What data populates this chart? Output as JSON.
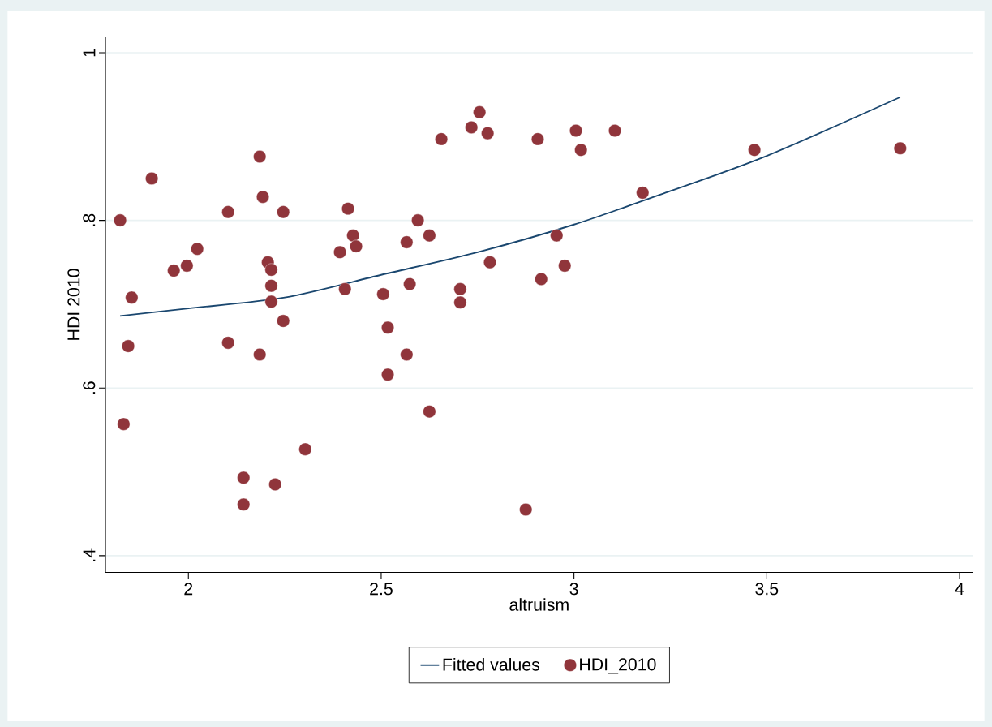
{
  "chart_data": {
    "type": "scatter",
    "xlabel": "altruism",
    "ylabel": "HDI 2010",
    "xlim": [
      1.785,
      4.035
    ],
    "ylim": [
      0.38,
      1.019
    ],
    "xticks": [
      2,
      2.5,
      3,
      3.5,
      4
    ],
    "yticks": [
      {
        "value": 0.4,
        "label": ".4"
      },
      {
        "value": 0.6,
        "label": ".6"
      },
      {
        "value": 0.8,
        "label": ".8"
      },
      {
        "value": 1,
        "label": "1"
      }
    ],
    "grid": "y",
    "legend": "bottom",
    "marker": "circle",
    "series": [
      {
        "name": "Fitted values",
        "type": "line",
        "color": "#1a476f",
        "marker": "none",
        "x": [
          1.823,
          2.0,
          2.25,
          2.5,
          2.75,
          3.0,
          3.25,
          3.5,
          3.846
        ],
        "values": [
          0.686,
          0.695,
          0.708,
          0.735,
          0.762,
          0.795,
          0.835,
          0.877,
          0.947
        ]
      },
      {
        "name": "HDI_2010",
        "color": "#90353b",
        "x": [
          1.823,
          1.832,
          1.844,
          1.853,
          1.905,
          1.962,
          1.996,
          2.023,
          2.103,
          2.103,
          2.185,
          2.185,
          2.193,
          2.206,
          2.215,
          2.215,
          2.215,
          2.143,
          2.143,
          2.225,
          2.246,
          2.246,
          2.303,
          2.393,
          2.406,
          2.414,
          2.427,
          2.435,
          2.505,
          2.517,
          2.517,
          2.566,
          2.566,
          2.574,
          2.595,
          2.625,
          2.625,
          2.656,
          2.705,
          2.705,
          2.734,
          2.755,
          2.776,
          2.782,
          2.875,
          2.906,
          2.915,
          2.955,
          2.976,
          3.005,
          3.018,
          3.106,
          3.178,
          3.468,
          3.846
        ],
        "values": [
          0.8,
          0.557,
          0.65,
          0.708,
          0.85,
          0.74,
          0.746,
          0.766,
          0.81,
          0.654,
          0.876,
          0.64,
          0.828,
          0.75,
          0.741,
          0.722,
          0.703,
          0.493,
          0.461,
          0.485,
          0.81,
          0.68,
          0.527,
          0.762,
          0.718,
          0.814,
          0.782,
          0.769,
          0.712,
          0.672,
          0.616,
          0.774,
          0.64,
          0.724,
          0.8,
          0.782,
          0.572,
          0.897,
          0.718,
          0.702,
          0.911,
          0.929,
          0.904,
          0.75,
          0.455,
          0.897,
          0.73,
          0.782,
          0.746,
          0.907,
          0.884,
          0.907,
          0.833,
          0.884,
          0.886
        ]
      }
    ]
  }
}
